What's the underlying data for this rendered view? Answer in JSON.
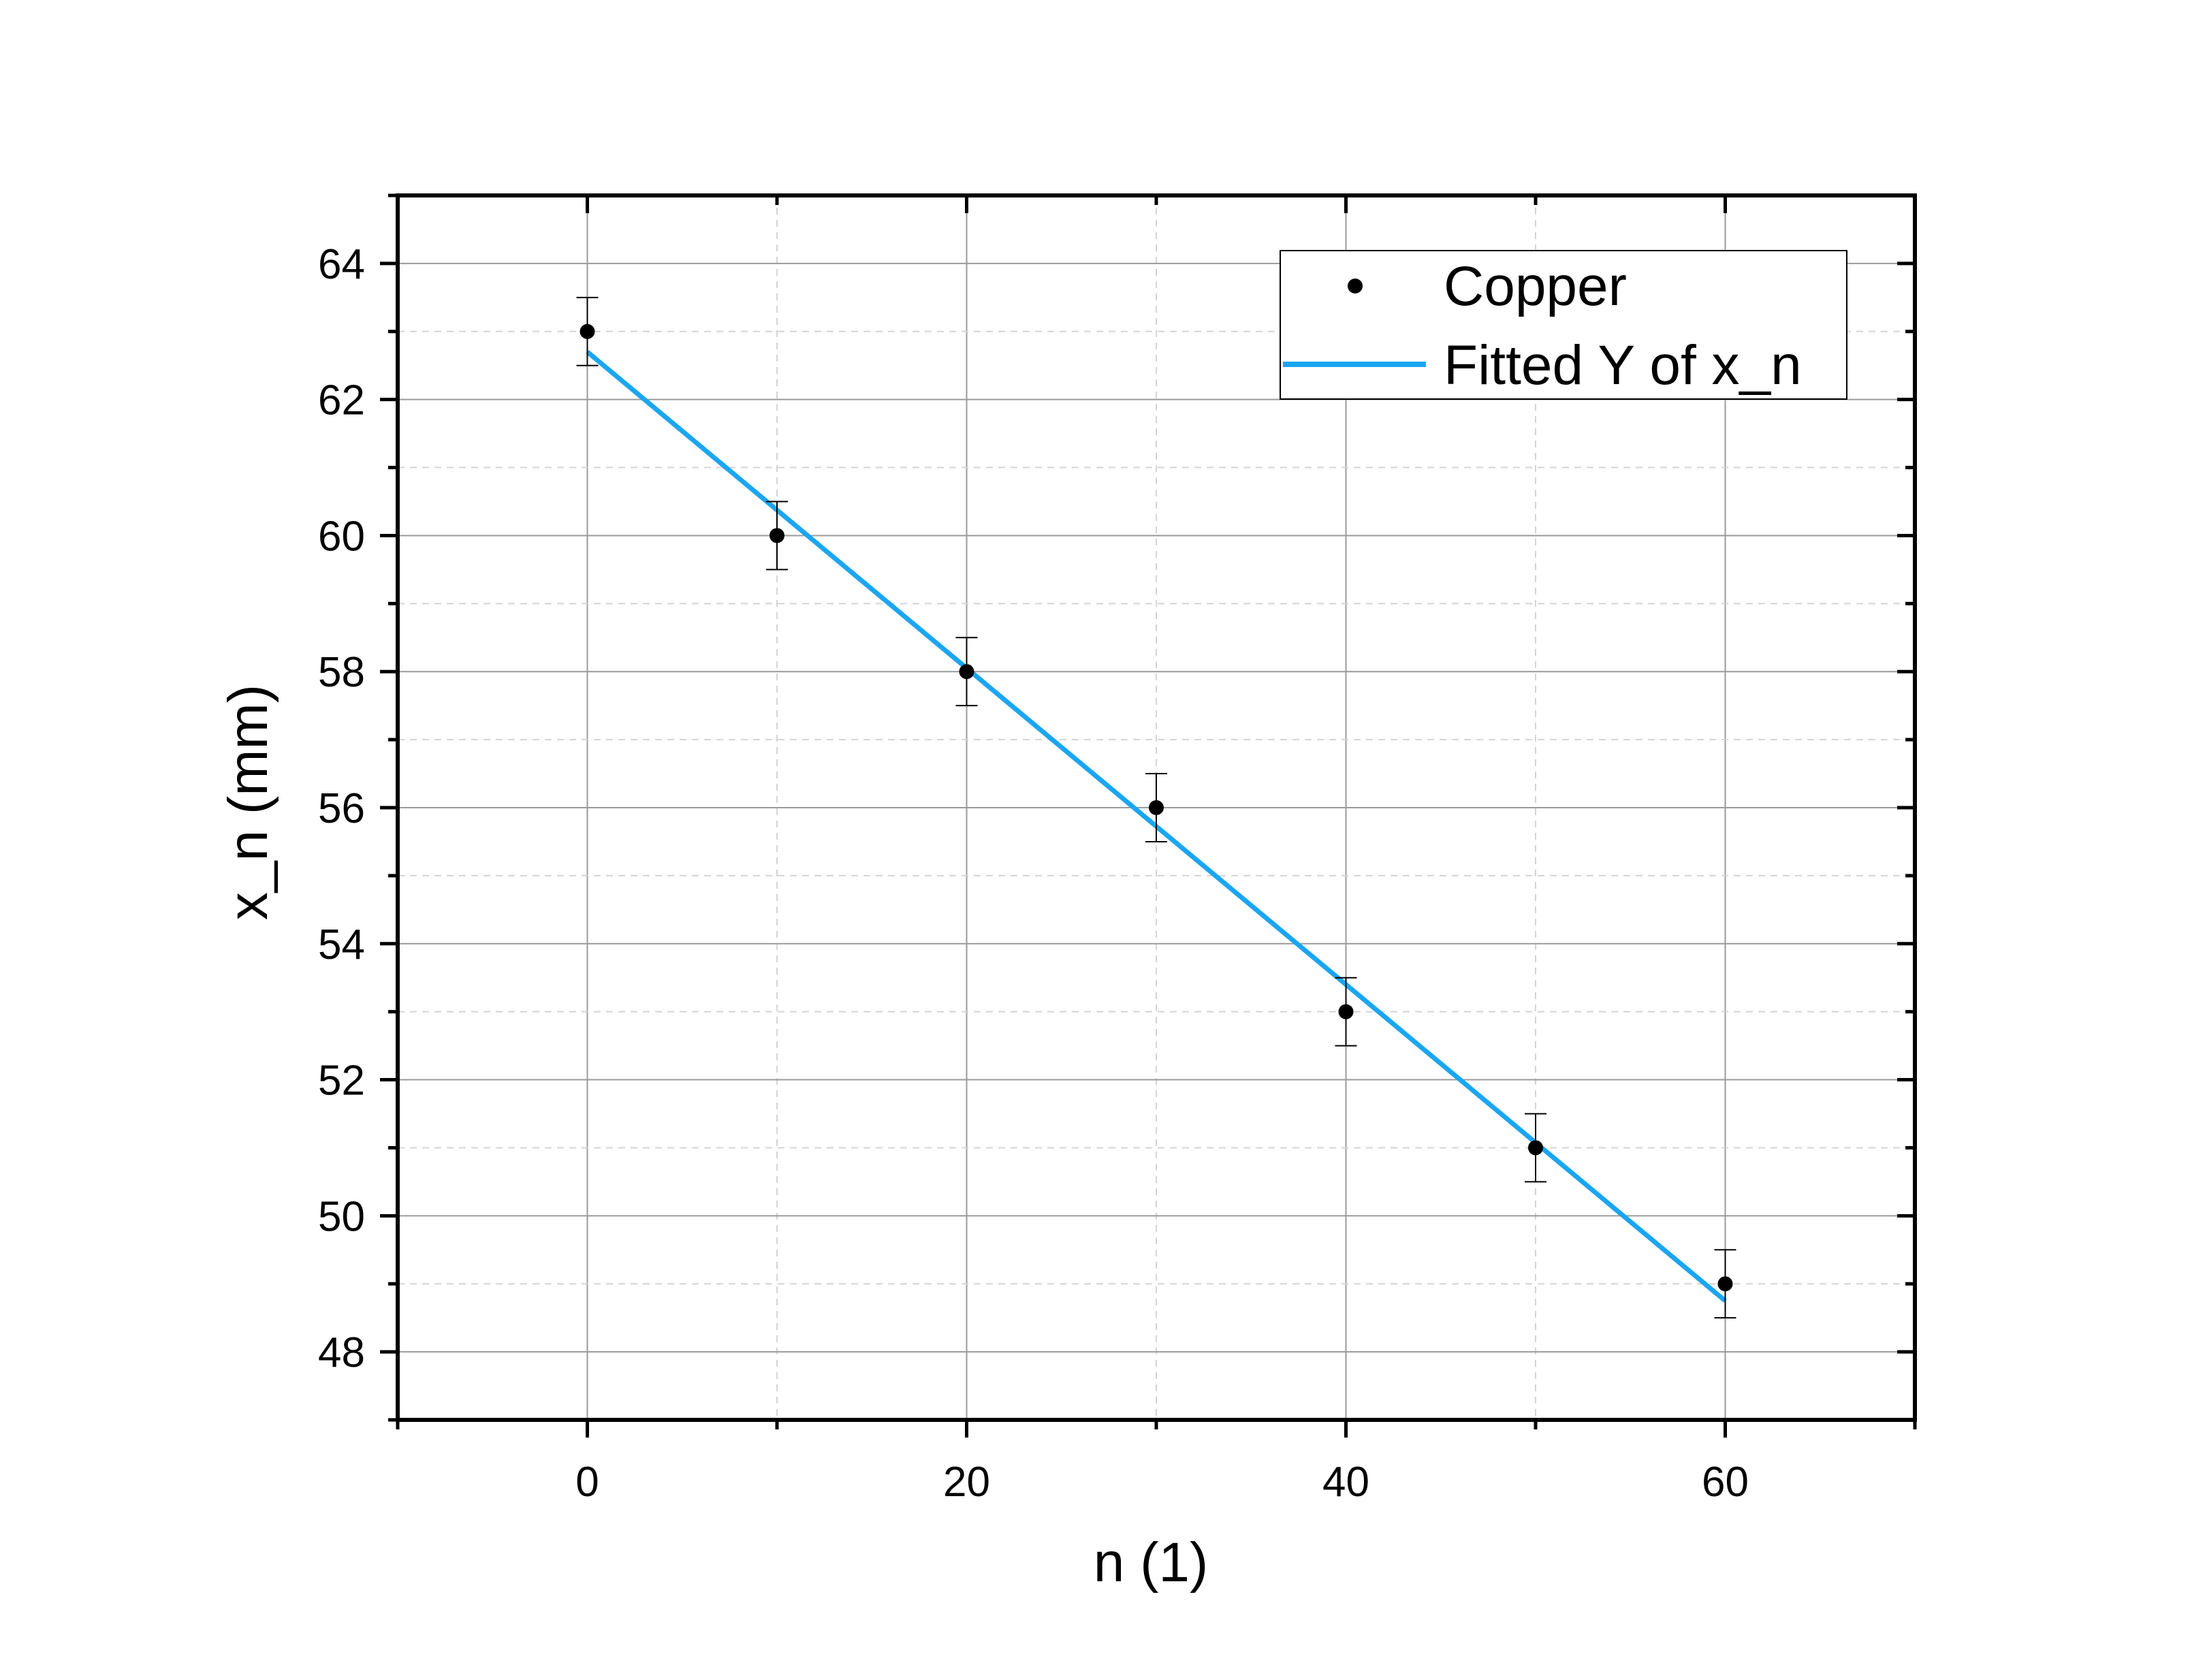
{
  "chart_data": {
    "type": "scatter",
    "xlabel": "n (1)",
    "ylabel": "x_n (mm)",
    "xlim": [
      -10,
      70
    ],
    "ylim": [
      47,
      65
    ],
    "x_ticks": [
      0,
      20,
      40,
      60
    ],
    "x_tick_labels": [
      "0",
      "20",
      "40",
      "60"
    ],
    "y_ticks": [
      48,
      50,
      52,
      54,
      56,
      58,
      60,
      62,
      64
    ],
    "y_tick_labels": [
      "48",
      "50",
      "52",
      "54",
      "56",
      "58",
      "60",
      "62",
      "64"
    ],
    "grid": true,
    "legend_position": "top-right",
    "series": [
      {
        "name": "Copper",
        "kind": "points",
        "x": [
          0,
          10,
          20,
          30,
          40,
          50,
          60
        ],
        "y": [
          63,
          60,
          58,
          56,
          53,
          51,
          49
        ],
        "y_error": 0.5,
        "color": "#000000"
      },
      {
        "name": "Fitted Y of x_n",
        "kind": "line",
        "x": [
          0,
          60
        ],
        "y": [
          62.7,
          48.75
        ],
        "color": "#1aa6f0"
      }
    ]
  }
}
